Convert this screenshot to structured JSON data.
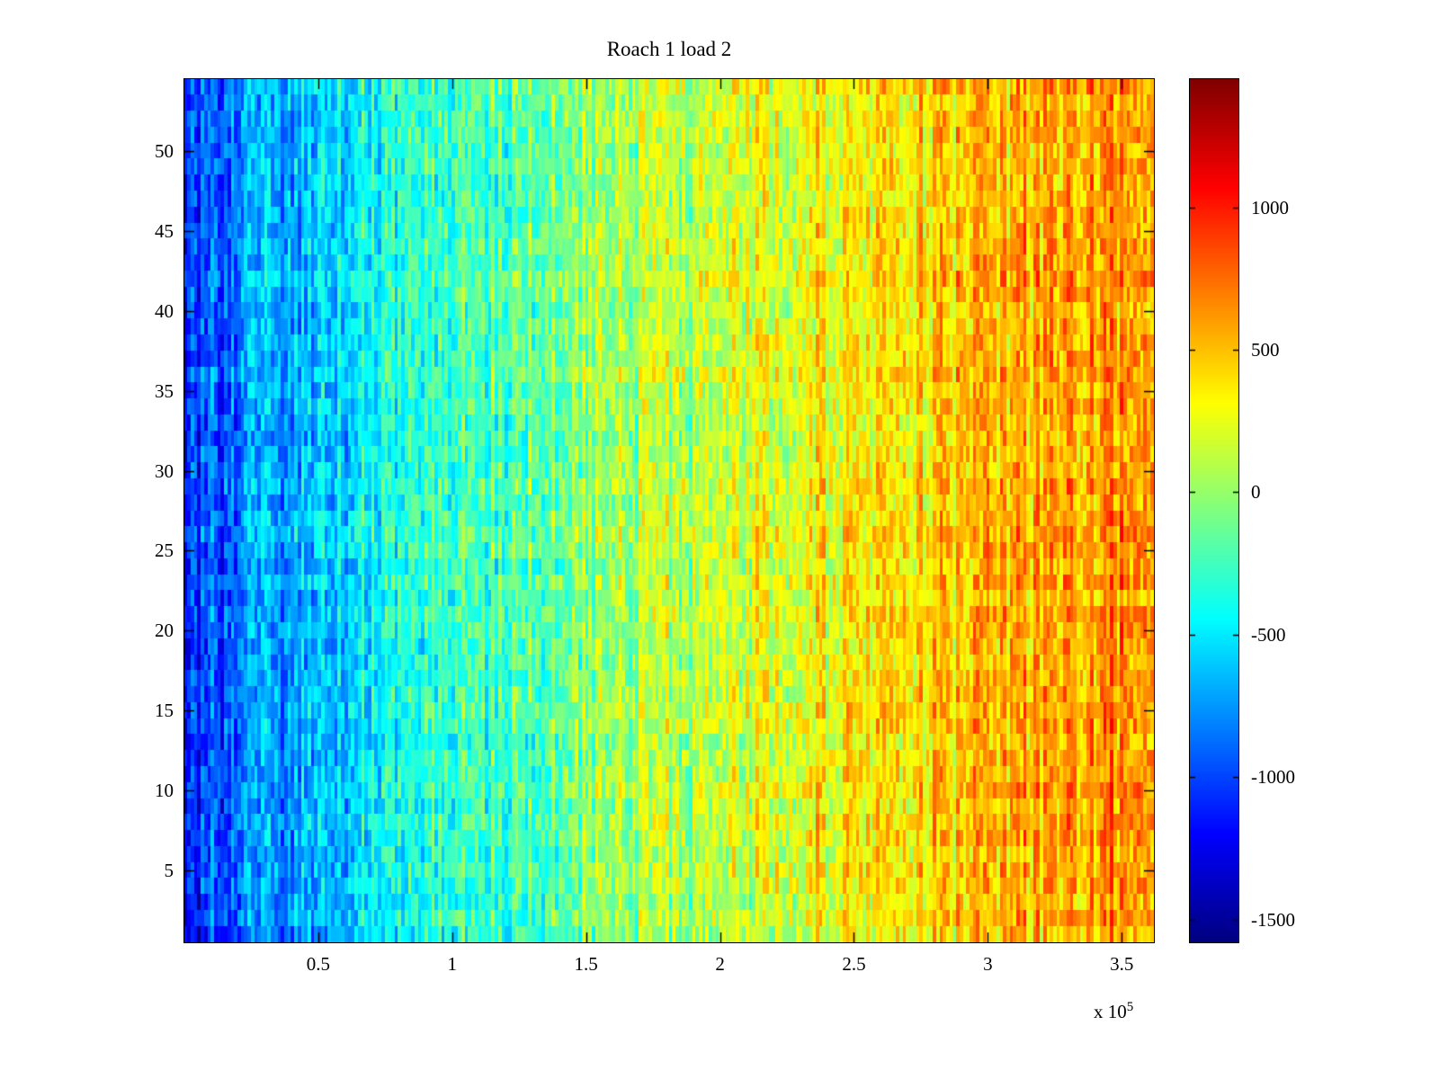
{
  "chart_data": {
    "type": "heatmap",
    "title": "Roach 1 load 2",
    "xlabel": "",
    "ylabel": "",
    "x_ticks": [
      0.5,
      1,
      1.5,
      2,
      2.5,
      3,
      3.5
    ],
    "x_tick_labels": [
      "0.5",
      "1",
      "1.5",
      "2",
      "2.5",
      "3",
      "3.5"
    ],
    "x_multiplier": {
      "base": "x 10",
      "exponent": "5"
    },
    "x_range": [
      0,
      362000
    ],
    "y_ticks": [
      5,
      10,
      15,
      20,
      25,
      30,
      35,
      40,
      45,
      50
    ],
    "y_tick_labels": [
      "5",
      "10",
      "15",
      "20",
      "25",
      "30",
      "35",
      "40",
      "45",
      "50"
    ],
    "y_range": [
      0.5,
      54.5
    ],
    "rows": 54,
    "cols": 290,
    "grid": false,
    "legend": "colorbar-right",
    "colormap": "jet",
    "colormap_colors": [
      "#00008f",
      "#0000ff",
      "#00ffff",
      "#7fff7f",
      "#ffff00",
      "#ff7f00",
      "#ff0000",
      "#7f0000"
    ],
    "value_range": [
      -1580,
      1450
    ],
    "colorbar_ticks": [
      1000,
      500,
      0,
      -500,
      -1000,
      -1500
    ],
    "colorbar_tick_labels": [
      "1000",
      "500",
      "0",
      "-500",
      "-1000",
      "-1500"
    ],
    "gradient": {
      "description": "values increase left to right: blue (~-1150) on the left through cyan/green/yellow in the middle to orange (~+700) on the right, with random speckle noise",
      "left_value": -1150,
      "right_value": 700,
      "curve_exponent": 0.55,
      "noise_amplitude": 340
    }
  }
}
